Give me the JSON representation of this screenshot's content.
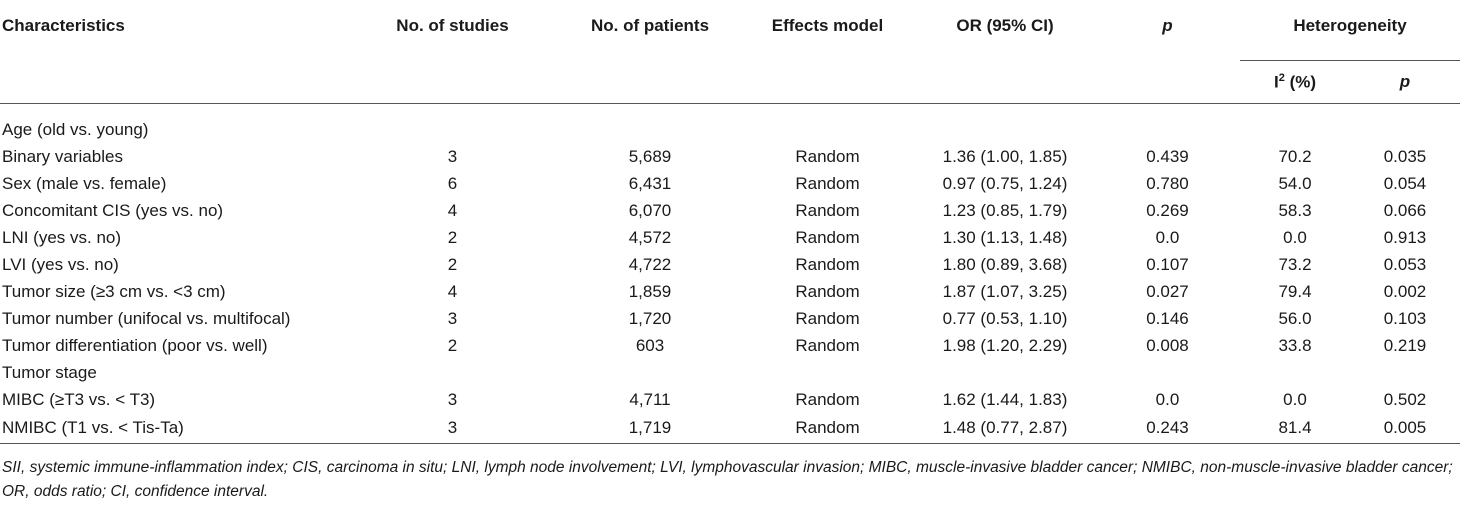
{
  "headers": {
    "characteristics": "Characteristics",
    "no_studies": "No. of studies",
    "no_patients": "No. of patients",
    "effects_model": "Effects model",
    "or_ci": "OR (95% CI)",
    "p": "p",
    "heterogeneity": "Heterogeneity",
    "i2_base": "I",
    "i2_sup": "2",
    "i2_suffix": " (%)",
    "het_p": "p"
  },
  "rows": [
    {
      "label": "Age (old vs. young)",
      "studies": "",
      "patients": "",
      "model": "",
      "or": "",
      "p": "",
      "i2": "",
      "hp": ""
    },
    {
      "label": "Binary variables",
      "studies": "3",
      "patients": "5,689",
      "model": "Random",
      "or": "1.36 (1.00, 1.85)",
      "p": "0.439",
      "i2": "70.2",
      "hp": "0.035"
    },
    {
      "label": "Sex (male vs. female)",
      "studies": "6",
      "patients": "6,431",
      "model": "Random",
      "or": "0.97 (0.75, 1.24)",
      "p": "0.780",
      "i2": "54.0",
      "hp": "0.054"
    },
    {
      "label": "Concomitant CIS (yes vs. no)",
      "studies": "4",
      "patients": "6,070",
      "model": "Random",
      "or": "1.23 (0.85, 1.79)",
      "p": "0.269",
      "i2": "58.3",
      "hp": "0.066"
    },
    {
      "label": "LNI (yes vs. no)",
      "studies": "2",
      "patients": "4,572",
      "model": "Random",
      "or": "1.30 (1.13, 1.48)",
      "p": "0.0",
      "i2": "0.0",
      "hp": "0.913"
    },
    {
      "label": "LVI (yes vs. no)",
      "studies": "2",
      "patients": "4,722",
      "model": "Random",
      "or": "1.80 (0.89, 3.68)",
      "p": "0.107",
      "i2": "73.2",
      "hp": "0.053"
    },
    {
      "label": "Tumor size (≥3 cm vs. <3 cm)",
      "studies": "4",
      "patients": "1,859",
      "model": "Random",
      "or": "1.87 (1.07, 3.25)",
      "p": "0.027",
      "i2": "79.4",
      "hp": "0.002"
    },
    {
      "label": "Tumor number (unifocal vs. multifocal)",
      "studies": "3",
      "patients": "1,720",
      "model": "Random",
      "or": "0.77 (0.53, 1.10)",
      "p": "0.146",
      "i2": "56.0",
      "hp": "0.103"
    },
    {
      "label": "Tumor differentiation (poor vs. well)",
      "studies": "2",
      "patients": "603",
      "model": "Random",
      "or": "1.98 (1.20, 2.29)",
      "p": "0.008",
      "i2": "33.8",
      "hp": "0.219"
    },
    {
      "label": "Tumor stage",
      "studies": "",
      "patients": "",
      "model": "",
      "or": "",
      "p": "",
      "i2": "",
      "hp": ""
    },
    {
      "label": "MIBC (≥T3 vs. < T3)",
      "studies": "3",
      "patients": "4,711",
      "model": "Random",
      "or": "1.62 (1.44, 1.83)",
      "p": "0.0",
      "i2": "0.0",
      "hp": "0.502"
    },
    {
      "label": "NMIBC (T1 vs. < Tis-Ta)",
      "studies": "3",
      "patients": "1,719",
      "model": "Random",
      "or": "1.48 (0.77, 2.87)",
      "p": "0.243",
      "i2": "81.4",
      "hp": "0.005"
    }
  ],
  "footnote": "SII, systemic immune-inflammation index; CIS, carcinoma in situ; LNI, lymph node involvement; LVI, lymphovascular invasion; MIBC, muscle-invasive bladder cancer; NMIBC, non-muscle-invasive bladder cancer; OR, odds ratio; CI, confidence interval."
}
